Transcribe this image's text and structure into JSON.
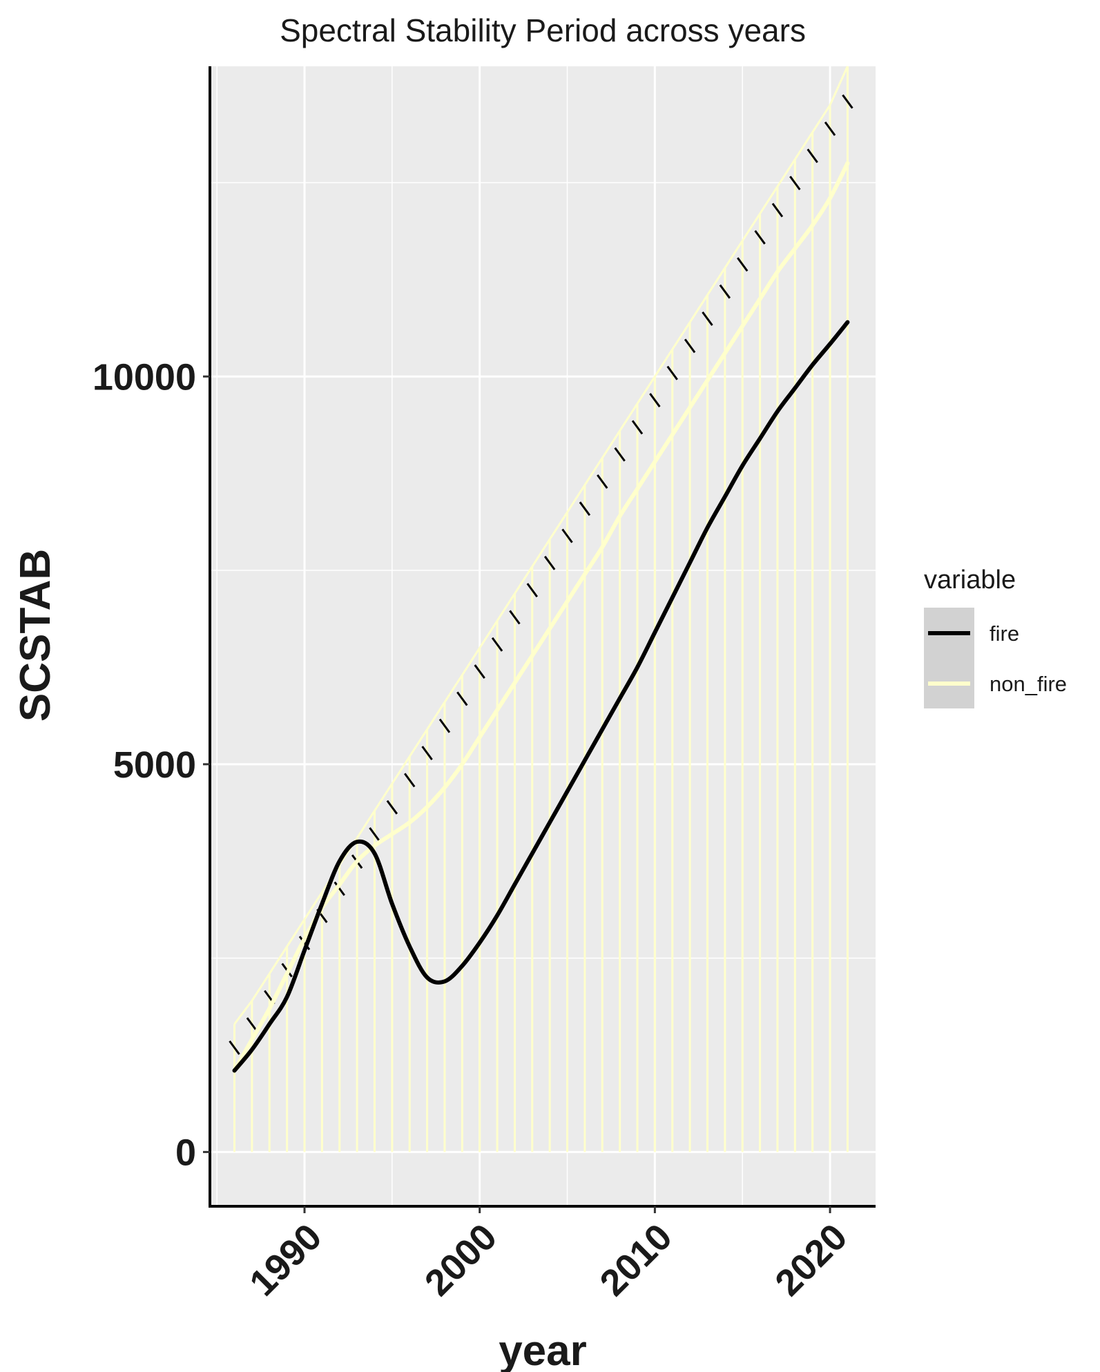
{
  "chart_data": {
    "type": "line",
    "title": "Spectral Stability Period across years",
    "xlabel": "year",
    "ylabel": "SCSTAB",
    "xlim": [
      1984.6,
      2022.6
    ],
    "ylim": [
      -700,
      14000
    ],
    "x_ticks": [
      1990,
      2000,
      2010,
      2020
    ],
    "y_ticks": [
      0,
      5000,
      10000
    ],
    "grid": true,
    "legend_position": "right",
    "legend": {
      "title": "variable",
      "entries": [
        "fire",
        "non_fire"
      ]
    },
    "colors": {
      "fire": "#000000",
      "non_fire": "#ffffcc",
      "panel_bg": "#ebebeb",
      "grid": "#ffffff",
      "legend_key_bg": "#d2d2d2"
    },
    "annotations": {
      "non_fire_bars": {
        "x": [
          1986,
          1987,
          1988,
          1989,
          1990,
          1991,
          1992,
          1993,
          1994,
          1995,
          1996,
          1997,
          1998,
          1999,
          2000,
          2001,
          2002,
          2003,
          2004,
          2005,
          2006,
          2007,
          2008,
          2009,
          2010,
          2011,
          2012,
          2013,
          2014,
          2015,
          2016,
          2017,
          2018,
          2019,
          2020,
          2021
        ],
        "y": [
          1650,
          1950,
          2300,
          2650,
          3000,
          3350,
          3700,
          4050,
          4400,
          4750,
          5100,
          5450,
          5800,
          6150,
          6500,
          6850,
          7200,
          7550,
          7900,
          8250,
          8600,
          8950,
          9300,
          9650,
          10000,
          10350,
          10700,
          11050,
          11400,
          11750,
          12100,
          12450,
          12800,
          13150,
          13500,
          14000
        ]
      },
      "fire_ticks": {
        "x": [
          1986,
          1987,
          1988,
          1989,
          1990,
          1991,
          1992,
          1993,
          1994,
          1995,
          1996,
          1997,
          1998,
          1999,
          2000,
          2001,
          2002,
          2003,
          2004,
          2005,
          2006,
          2007,
          2008,
          2009,
          2010,
          2011,
          2012,
          2013,
          2014,
          2015,
          2016,
          2017,
          2018,
          2019,
          2020,
          2021
        ],
        "y": [
          1300,
          1600,
          1950,
          2300,
          2650,
          3000,
          3350,
          3700,
          4050,
          4400,
          4750,
          5100,
          5450,
          5800,
          6150,
          6500,
          6850,
          7200,
          7550,
          7900,
          8250,
          8600,
          8950,
          9300,
          9650,
          10000,
          10350,
          10700,
          11050,
          11400,
          11750,
          12100,
          12450,
          12800,
          13150,
          13500
        ]
      }
    },
    "series": [
      {
        "name": "fire",
        "color": "#000000",
        "x": [
          1986,
          1987,
          1988,
          1989,
          1990,
          1991,
          1992,
          1993,
          1994,
          1995,
          1996,
          1997,
          1998,
          1999,
          2000,
          2001,
          2002,
          2003,
          2004,
          2005,
          2006,
          2007,
          2008,
          2009,
          2010,
          2011,
          2012,
          2013,
          2014,
          2015,
          2016,
          2017,
          2018,
          2019,
          2020,
          2021
        ],
        "y": [
          1050,
          1320,
          1650,
          2000,
          2600,
          3200,
          3750,
          4000,
          3850,
          3200,
          2650,
          2250,
          2200,
          2400,
          2700,
          3050,
          3450,
          3850,
          4250,
          4650,
          5050,
          5450,
          5850,
          6250,
          6700,
          7150,
          7600,
          8050,
          8450,
          8850,
          9200,
          9550,
          9850,
          10150,
          10420,
          10700
        ]
      },
      {
        "name": "non_fire",
        "color": "#ffffcc",
        "x": [
          1986,
          1987,
          1988,
          1989,
          1990,
          1991,
          1992,
          1993,
          1994,
          1995,
          1996,
          1997,
          1998,
          1999,
          2000,
          2001,
          2002,
          2003,
          2004,
          2005,
          2006,
          2007,
          2008,
          2009,
          2010,
          2011,
          2012,
          2013,
          2014,
          2015,
          2016,
          2017,
          2018,
          2019,
          2020,
          2021
        ],
        "y": [
          1050,
          1450,
          1850,
          2300,
          2750,
          3150,
          3450,
          3750,
          3950,
          4100,
          4250,
          4450,
          4700,
          5000,
          5350,
          5700,
          6050,
          6400,
          6750,
          7100,
          7450,
          7800,
          8200,
          8550,
          8900,
          9250,
          9600,
          9950,
          10300,
          10650,
          11000,
          11350,
          11650,
          11950,
          12300,
          12750
        ]
      }
    ]
  }
}
